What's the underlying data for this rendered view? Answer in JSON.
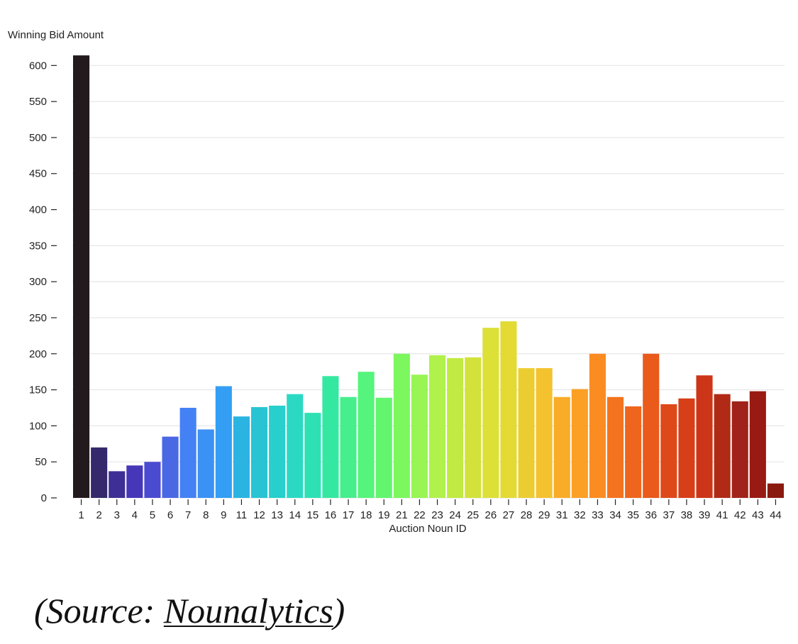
{
  "chart_data": {
    "type": "bar",
    "ylabel": "Winning Bid Amount",
    "xlabel": "Auction Noun ID",
    "ylim": [
      0,
      620
    ],
    "yticks": [
      0,
      50,
      100,
      150,
      200,
      250,
      300,
      350,
      400,
      450,
      500,
      550,
      600
    ],
    "grid": true,
    "categories": [
      "1",
      "2",
      "3",
      "4",
      "5",
      "6",
      "7",
      "8",
      "9",
      "11",
      "12",
      "13",
      "14",
      "15",
      "16",
      "17",
      "18",
      "19",
      "21",
      "22",
      "23",
      "24",
      "25",
      "26",
      "27",
      "28",
      "29",
      "31",
      "32",
      "33",
      "34",
      "35",
      "36",
      "37",
      "38",
      "39",
      "41",
      "42",
      "43",
      "44"
    ],
    "values": [
      614,
      70,
      37,
      45,
      50,
      85,
      125,
      95,
      155,
      113,
      126,
      128,
      144,
      118,
      169,
      140,
      175,
      139,
      200,
      171,
      198,
      194,
      195,
      236,
      245,
      180,
      180,
      140,
      151,
      200,
      140,
      127,
      200,
      130,
      138,
      170,
      144,
      134,
      148,
      20
    ],
    "colors": [
      "#231a1d",
      "#35286b",
      "#3d2f95",
      "#4637b8",
      "#4b4bd1",
      "#4a67e4",
      "#4381f5",
      "#3c91f4",
      "#339ef4",
      "#2bb4e1",
      "#28c4d4",
      "#27d0cc",
      "#2bd9c3",
      "#2ee1b5",
      "#35e8a2",
      "#46ee8c",
      "#55f47c",
      "#63f56e",
      "#7cf75e",
      "#98f553",
      "#b0f14b",
      "#c1ea42",
      "#d3e23b",
      "#dde036",
      "#e3da34",
      "#eccd31",
      "#f4c22e",
      "#f9ac28",
      "#fb9f25",
      "#fb8c22",
      "#f3731f",
      "#ee651d",
      "#e95a1b",
      "#de4919",
      "#d63f18",
      "#cc3517",
      "#b02a16",
      "#a1221a",
      "#991a13",
      "#8a1a10"
    ]
  },
  "source": {
    "prefix": "(Source: ",
    "link_text": "Nounalytics",
    "suffix": ")"
  }
}
